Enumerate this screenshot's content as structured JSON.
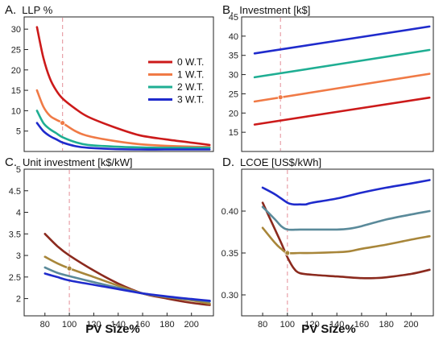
{
  "chart_data": [
    {
      "type": "line",
      "panel": "A.",
      "title": "LLP %",
      "xlabel": "",
      "ylabel": "",
      "xlim": [
        70,
        218
      ],
      "ylim": [
        0,
        33
      ],
      "yticks": [
        5,
        10,
        15,
        20,
        25,
        30
      ],
      "xticks": [],
      "vline": 100,
      "legend_position": "top-right",
      "series": [
        {
          "name": "0 W.T.",
          "color": "#cc1a1a",
          "x": [
            80,
            85,
            90,
            95,
            100,
            110,
            120,
            140,
            160,
            180,
            200,
            215
          ],
          "y": [
            30.5,
            23.0,
            18.0,
            15.0,
            13.0,
            10.5,
            8.5,
            6.0,
            4.0,
            3.0,
            2.2,
            1.6
          ]
        },
        {
          "name": "1 W.T.",
          "color": "#f07a46",
          "x": [
            80,
            85,
            90,
            95,
            100,
            110,
            120,
            140,
            160,
            180,
            200,
            215
          ],
          "y": [
            15.0,
            11.0,
            8.8,
            7.8,
            7.0,
            5.0,
            3.8,
            2.6,
            1.8,
            1.4,
            1.2,
            1.1
          ]
        },
        {
          "name": "2 W.T.",
          "color": "#1fae93",
          "x": [
            80,
            85,
            90,
            95,
            100,
            110,
            120,
            140,
            160,
            180,
            200,
            215
          ],
          "y": [
            10.0,
            7.0,
            5.5,
            4.5,
            3.5,
            2.3,
            1.6,
            1.2,
            1.0,
            0.9,
            0.9,
            0.9
          ]
        },
        {
          "name": "3 W.T.",
          "color": "#1f2bcc",
          "x": [
            80,
            85,
            90,
            95,
            100,
            110,
            120,
            140,
            160,
            180,
            200,
            215
          ],
          "y": [
            7.0,
            5.0,
            3.8,
            3.0,
            2.2,
            1.3,
            0.9,
            0.6,
            0.5,
            0.5,
            0.5,
            0.5
          ]
        }
      ],
      "markers": [
        {
          "x": 100,
          "y": 7.0,
          "color": "#f07a46"
        }
      ]
    },
    {
      "type": "line",
      "panel": "B.",
      "title": "Investment [k$]",
      "xlabel": "",
      "ylabel": "",
      "xlim": [
        70,
        218
      ],
      "ylim": [
        10,
        45
      ],
      "yticks": [
        15,
        20,
        25,
        30,
        35,
        40,
        45
      ],
      "xticks": [],
      "vline": 100,
      "series": [
        {
          "name": "",
          "color": "#cc1a1a",
          "x": [
            80,
            215
          ],
          "y": [
            17.0,
            24.0
          ]
        },
        {
          "name": "",
          "color": "#f07a46",
          "x": [
            80,
            215
          ],
          "y": [
            23.0,
            30.2
          ]
        },
        {
          "name": "",
          "color": "#1fae93",
          "x": [
            80,
            215
          ],
          "y": [
            29.3,
            36.4
          ]
        },
        {
          "name": "",
          "color": "#1f2bcc",
          "x": [
            80,
            215
          ],
          "y": [
            35.5,
            42.5
          ]
        }
      ],
      "markers": [
        {
          "x": 100,
          "y": 24.1,
          "color": "#f07a46"
        }
      ]
    },
    {
      "type": "line",
      "panel": "C.",
      "title": "Unit investment [k$/kW]",
      "xlabel": "PV Size%",
      "ylabel": "",
      "xlim": [
        63,
        218
      ],
      "ylim": [
        1.6,
        5.0
      ],
      "yticks": [
        2.0,
        2.5,
        3.0,
        3.5,
        4.0,
        4.5,
        5.0
      ],
      "xticks": [
        80,
        100,
        120,
        140,
        160,
        180,
        200
      ],
      "vline": 100,
      "series": [
        {
          "name": "",
          "color": "#8b2a1e",
          "x": [
            80,
            90,
            100,
            120,
            140,
            160,
            180,
            200,
            215
          ],
          "y": [
            3.5,
            3.22,
            3.0,
            2.65,
            2.35,
            2.12,
            2.0,
            1.9,
            1.85
          ]
        },
        {
          "name": "",
          "color": "#a8863a",
          "x": [
            80,
            90,
            100,
            120,
            140,
            160,
            180,
            200,
            215
          ],
          "y": [
            2.97,
            2.82,
            2.7,
            2.5,
            2.3,
            2.12,
            2.03,
            1.96,
            1.88
          ]
        },
        {
          "name": "",
          "color": "#5a8a9a",
          "x": [
            80,
            90,
            100,
            120,
            140,
            160,
            180,
            200,
            215
          ],
          "y": [
            2.72,
            2.6,
            2.52,
            2.38,
            2.25,
            2.12,
            2.04,
            1.98,
            1.93
          ]
        },
        {
          "name": "",
          "color": "#1f2bcc",
          "x": [
            80,
            90,
            100,
            120,
            140,
            160,
            180,
            200,
            215
          ],
          "y": [
            2.58,
            2.5,
            2.42,
            2.32,
            2.22,
            2.12,
            2.05,
            1.99,
            1.95
          ]
        }
      ],
      "markers": [
        {
          "x": 100,
          "y": 2.7,
          "color": "#a8863a"
        }
      ]
    },
    {
      "type": "line",
      "panel": "D.",
      "title": "LCOE  [US$/kWh]",
      "xlabel": "PV Size%",
      "ylabel": "",
      "xlim": [
        63,
        218
      ],
      "ylim": [
        0.275,
        0.45
      ],
      "yticks": [
        0.3,
        0.35,
        0.4
      ],
      "yticklabels": [
        "0.30",
        "0.35",
        "0.40"
      ],
      "xticks": [
        80,
        100,
        120,
        140,
        160,
        180,
        200
      ],
      "vline": 100,
      "series": [
        {
          "name": "",
          "color": "#8b2a1e",
          "x": [
            80,
            90,
            95,
            100,
            105,
            110,
            120,
            140,
            160,
            170,
            180,
            200,
            215
          ],
          "y": [
            0.41,
            0.378,
            0.362,
            0.345,
            0.332,
            0.326,
            0.324,
            0.322,
            0.32,
            0.32,
            0.321,
            0.325,
            0.33
          ]
        },
        {
          "name": "",
          "color": "#a8863a",
          "x": [
            80,
            90,
            95,
            100,
            110,
            120,
            140,
            150,
            160,
            180,
            200,
            215
          ],
          "y": [
            0.38,
            0.362,
            0.355,
            0.35,
            0.35,
            0.35,
            0.351,
            0.352,
            0.355,
            0.36,
            0.366,
            0.37
          ]
        },
        {
          "name": "",
          "color": "#5a8a9a",
          "x": [
            80,
            90,
            95,
            100,
            110,
            120,
            140,
            150,
            160,
            180,
            200,
            215
          ],
          "y": [
            0.405,
            0.39,
            0.382,
            0.378,
            0.378,
            0.378,
            0.378,
            0.379,
            0.382,
            0.39,
            0.396,
            0.4
          ]
        },
        {
          "name": "",
          "color": "#1f2bcc",
          "x": [
            80,
            90,
            100,
            105,
            110,
            115,
            120,
            140,
            160,
            180,
            200,
            215
          ],
          "y": [
            0.428,
            0.42,
            0.41,
            0.408,
            0.408,
            0.408,
            0.41,
            0.415,
            0.422,
            0.428,
            0.433,
            0.437
          ]
        }
      ],
      "markers": [
        {
          "x": 100,
          "y": 0.35,
          "color": "#a8863a"
        }
      ]
    }
  ]
}
